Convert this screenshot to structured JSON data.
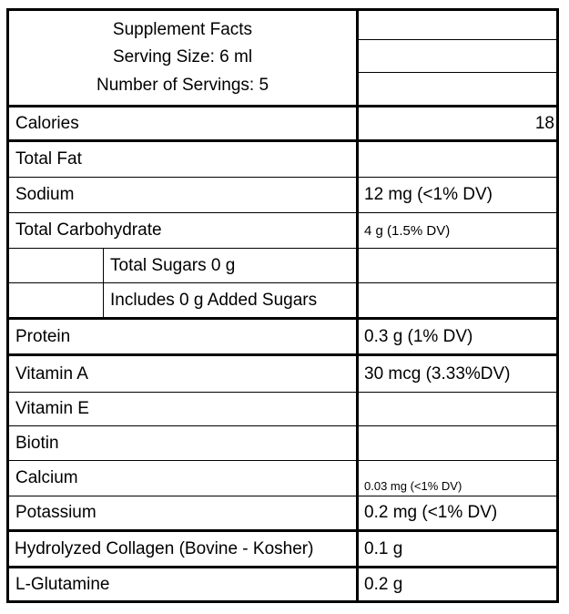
{
  "header": {
    "title": "Supplement Facts",
    "serving_size": "Serving Size: 6 ml",
    "servings": "Number of Servings: 5"
  },
  "rows": [
    {
      "label": "Calories",
      "value": "18"
    },
    {
      "label": "Total Fat",
      "value": ""
    },
    {
      "label": "Sodium",
      "value": "12 mg (<1% DV)"
    },
    {
      "label": "Total Carbohydrate",
      "value": "4 g (1.5% DV)"
    },
    {
      "label": "Total Sugars 0 g",
      "value": ""
    },
    {
      "label": "Includes 0 g Added Sugars",
      "value": ""
    },
    {
      "label": "Protein",
      "value": "0.3 g (1% DV)"
    },
    {
      "label": "Vitamin A",
      "value": "30 mcg (3.33%DV)"
    },
    {
      "label": "Vitamin E",
      "value": ""
    },
    {
      "label": "Biotin",
      "value": ""
    },
    {
      "label": "Calcium",
      "value": "0.03 mg (<1% DV)"
    },
    {
      "label": "Potassium",
      "value": "0.2 mg (<1% DV)"
    },
    {
      "label": "Hydrolyzed Collagen (Bovine - Kosher)",
      "value": "0.1 g"
    },
    {
      "label": "L-Glutamine",
      "value": "0.2 g"
    }
  ]
}
